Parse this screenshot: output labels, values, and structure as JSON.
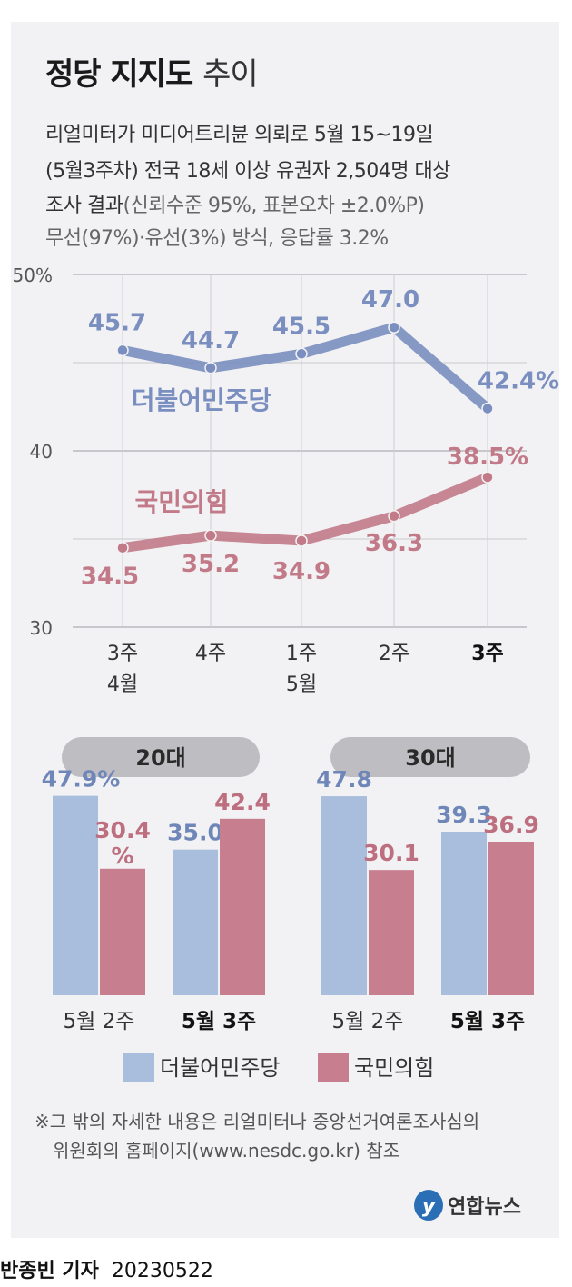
{
  "title_main": "정당 지지도",
  "title_sub": "추이",
  "subtitle_lines": [
    "리얼미터가 미디어트리뷴 의뢰로 5월 15~19일",
    "(5월3주차) 전국 18세 이상 유권자 2,504명 대상",
    "조사 결과"
  ],
  "subtitle_paren": "(신뢰수준 95%, 표본오차 ±2.0%P)",
  "subtitle_method": "무선(97%)·유선(3%) 방식, 응답률 3.2%",
  "colors": {
    "democratic": "#7a8fbf",
    "ppp": "#c27a88",
    "dem_bar": "#a9bddc",
    "ppp_bar": "#c77f8f"
  },
  "chart_data": [
    {
      "type": "line",
      "title": "정당 지지도 추이",
      "ylim": [
        30,
        50
      ],
      "yticks": [
        {
          "value": 50,
          "label": "50%"
        },
        {
          "value": 40,
          "label": "40"
        },
        {
          "value": 30,
          "label": "30"
        }
      ],
      "categories": [
        {
          "line1": "3주",
          "line2": "4월",
          "bold": false
        },
        {
          "line1": "4주",
          "line2": "",
          "bold": false
        },
        {
          "line1": "1주",
          "line2": "5월",
          "bold": false
        },
        {
          "line1": "2주",
          "line2": "",
          "bold": false
        },
        {
          "line1": "3주",
          "line2": "",
          "bold": true
        }
      ],
      "series": [
        {
          "name": "더불어민주당",
          "color": "#7a8fbf",
          "values": [
            45.7,
            44.7,
            45.5,
            47.0,
            42.4
          ],
          "labels": [
            "45.7",
            "44.7",
            "45.5",
            "47.0",
            "42.4%"
          ]
        },
        {
          "name": "국민의힘",
          "color": "#c27a88",
          "values": [
            34.5,
            35.2,
            34.9,
            36.3,
            38.5
          ],
          "labels": [
            "34.5",
            "35.2",
            "34.9",
            "36.3",
            "38.5%"
          ]
        }
      ]
    },
    {
      "type": "bar",
      "title": "20대",
      "categories": [
        {
          "label": "5월 2주",
          "bold": false
        },
        {
          "label": "5월 3주",
          "bold": true
        }
      ],
      "series": [
        {
          "name": "더불어민주당",
          "values": [
            47.9,
            35.0
          ],
          "labels": [
            "47.9%",
            "35.0"
          ]
        },
        {
          "name": "국민의힘",
          "values": [
            30.4,
            42.4
          ],
          "labels": [
            "30.4%",
            "42.4"
          ]
        }
      ]
    },
    {
      "type": "bar",
      "title": "30대",
      "categories": [
        {
          "label": "5월 2주",
          "bold": false
        },
        {
          "label": "5월 3주",
          "bold": true
        }
      ],
      "series": [
        {
          "name": "더불어민주당",
          "values": [
            47.8,
            39.3
          ],
          "labels": [
            "47.8",
            "39.3"
          ]
        },
        {
          "name": "국민의힘",
          "values": [
            30.1,
            36.9
          ],
          "labels": [
            "30.1",
            "36.9"
          ]
        }
      ]
    }
  ],
  "legend": [
    {
      "name": "더불어민주당",
      "color": "#a9bddc"
    },
    {
      "name": "국민의힘",
      "color": "#c77f8f"
    }
  ],
  "note_lines": [
    "※그 밖의 자세한 내용은 리얼미터나 중앙선거여론조사심의",
    "위원회의 홈페이지(www.nesdc.go.kr) 참조"
  ],
  "logo_text": "연합뉴스",
  "reporter": "반종빈 기자",
  "date": "20230522"
}
